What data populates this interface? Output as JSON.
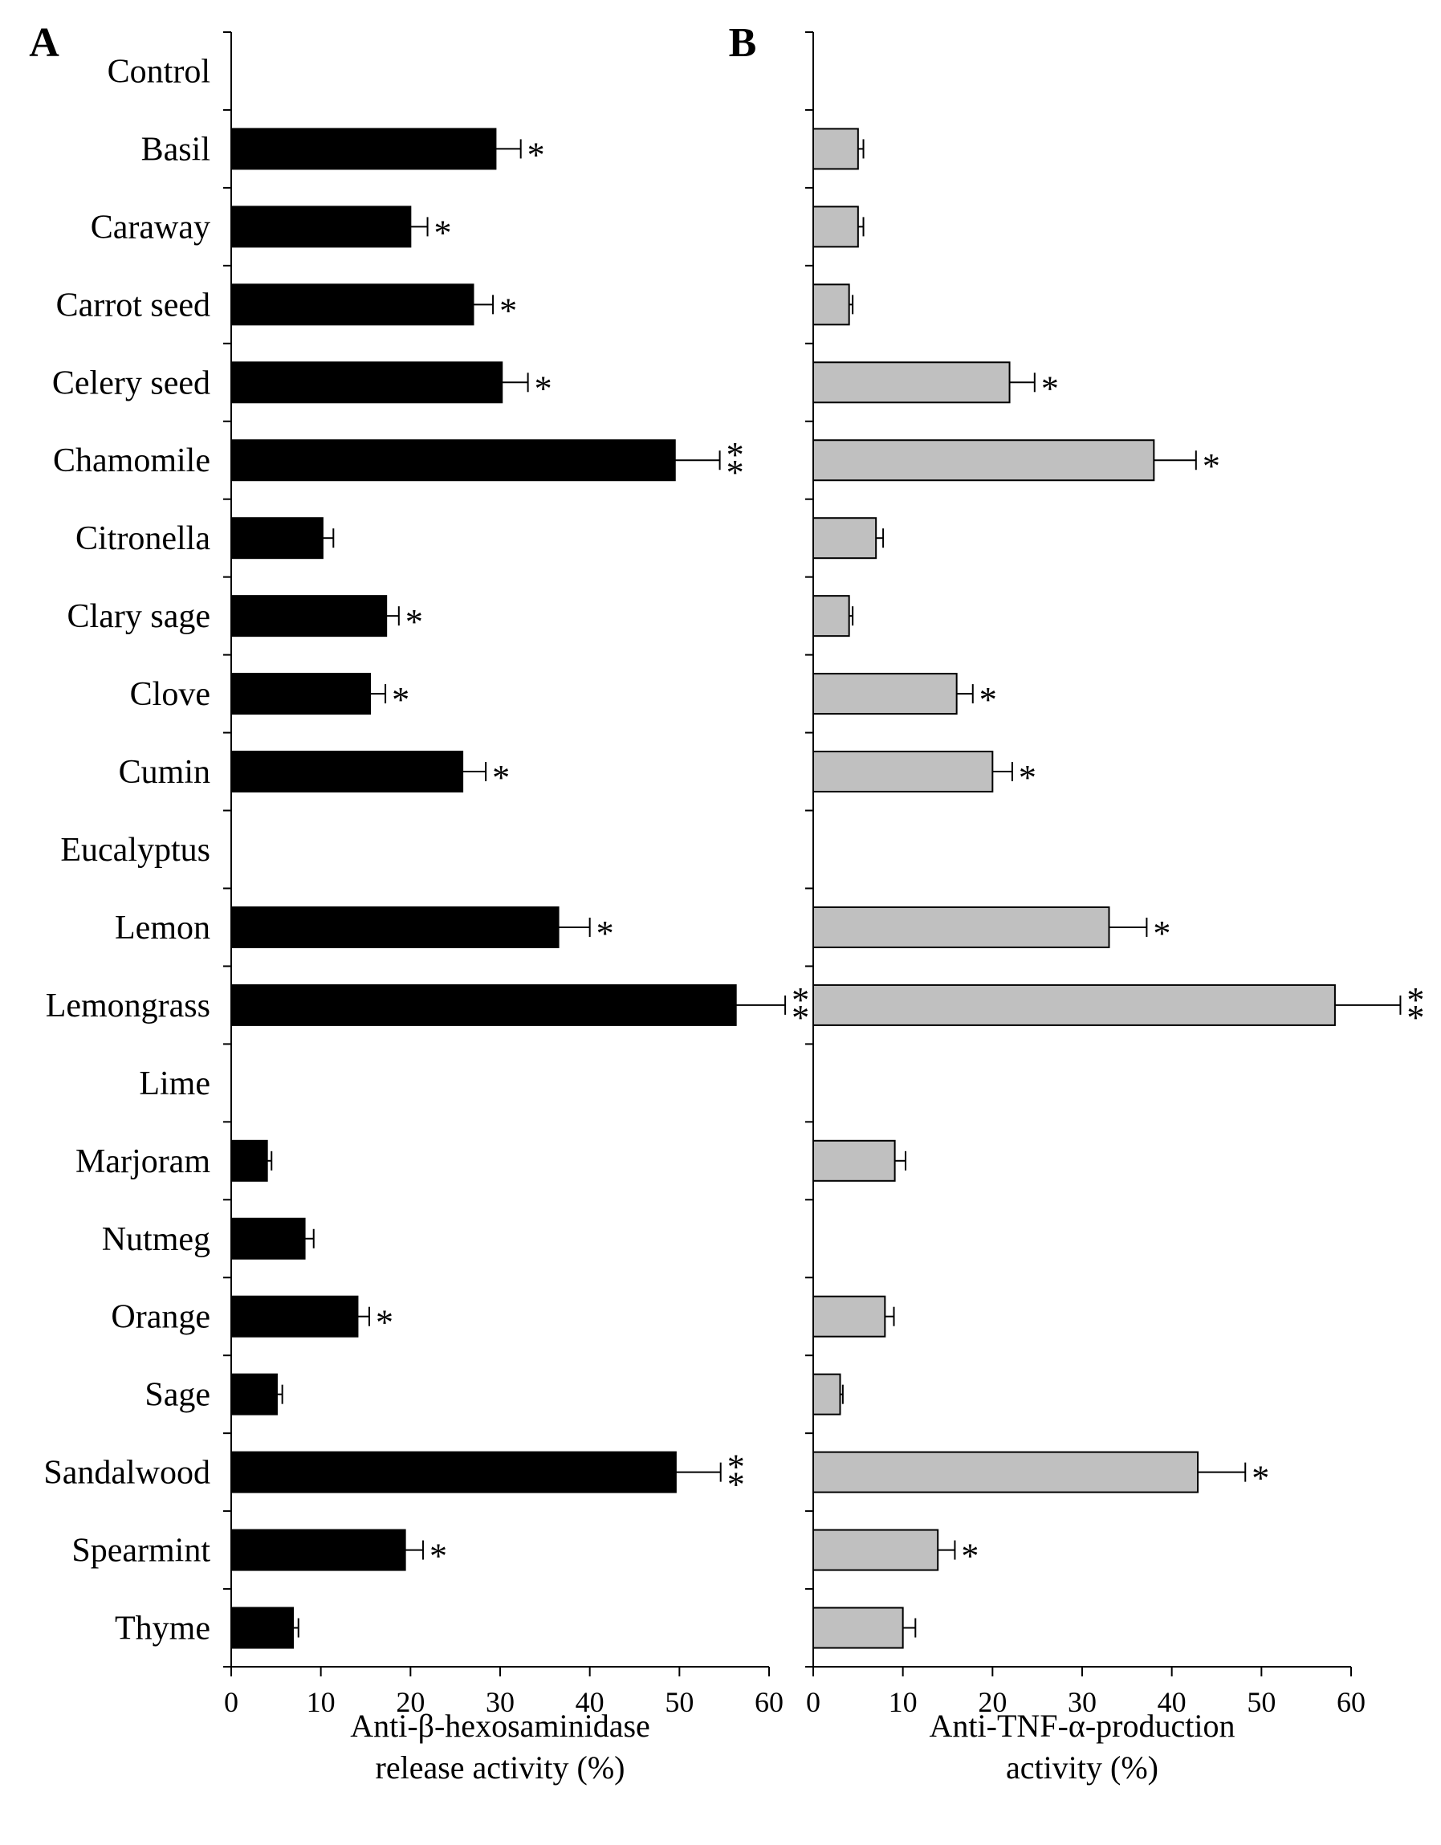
{
  "chart_data": [
    {
      "type": "bar",
      "orientation": "horizontal",
      "panel_label": "A",
      "xlabel": [
        "Anti-β-hexosaminidase",
        "release activity (%)"
      ],
      "xlim": [
        0,
        60
      ],
      "xticks": [
        0,
        10,
        20,
        30,
        40,
        50,
        60
      ],
      "bar_color": "#000000",
      "categories": [
        "Control",
        "Basil",
        "Caraway",
        "Carrot seed",
        "Celery seed",
        "Chamomile",
        "Citronella",
        "Clary sage",
        "Clove",
        "Cumin",
        "Eucalyptus",
        "Lemon",
        "Lemongrass",
        "Lime",
        "Marjoram",
        "Nutmeg",
        "Orange",
        "Sage",
        "Sandalwood",
        "Spearmint",
        "Thyme"
      ],
      "values": [
        0,
        29.5,
        20,
        27,
        30.2,
        49.5,
        10.2,
        17.3,
        15.5,
        25.8,
        0,
        36.5,
        56.3,
        0,
        4,
        8.2,
        14.1,
        5.1,
        49.6,
        19.4,
        6.9
      ],
      "errors": [
        0,
        2.8,
        1.9,
        2.2,
        2.9,
        5.0,
        1.2,
        1.4,
        1.7,
        2.6,
        0,
        3.5,
        5.5,
        0,
        0.5,
        1.0,
        1.3,
        0.6,
        5.0,
        2.0,
        0.6
      ],
      "significance": [
        "",
        "*",
        "*",
        "*",
        "*",
        "**",
        "",
        "*",
        "*",
        "*",
        "",
        "*",
        "**",
        "",
        "",
        "",
        "*",
        "",
        "**",
        "*",
        ""
      ]
    },
    {
      "type": "bar",
      "orientation": "horizontal",
      "panel_label": "B",
      "xlabel": [
        "Anti-TNF-α-production",
        "activity (%)"
      ],
      "xlim": [
        0,
        60
      ],
      "xticks": [
        0,
        10,
        20,
        30,
        40,
        50,
        60
      ],
      "bar_color": "#c0c0c0",
      "categories": [
        "Control",
        "Basil",
        "Caraway",
        "Carrot seed",
        "Celery seed",
        "Chamomile",
        "Citronella",
        "Clary sage",
        "Clove",
        "Cumin",
        "Eucalyptus",
        "Lemon",
        "Lemongrass",
        "Lime",
        "Marjoram",
        "Nutmeg",
        "Orange",
        "Sage",
        "Sandalwood",
        "Spearmint",
        "Thyme"
      ],
      "values": [
        0,
        5,
        5,
        4,
        21.9,
        38,
        7,
        4,
        16,
        20,
        0,
        33,
        58.2,
        0,
        9.1,
        0,
        8,
        3,
        42.9,
        13.9,
        10
      ],
      "errors": [
        0,
        0.6,
        0.6,
        0.4,
        2.8,
        4.7,
        0.8,
        0.4,
        1.8,
        2.2,
        0,
        4.2,
        7.3,
        0,
        1.2,
        0,
        1.0,
        0.3,
        5.3,
        1.9,
        1.4
      ],
      "significance": [
        "",
        "",
        "",
        "",
        "*",
        "*",
        "",
        "",
        "*",
        "*",
        "",
        "*",
        "**",
        "",
        "",
        "",
        "",
        "",
        "*",
        "*",
        ""
      ]
    }
  ]
}
